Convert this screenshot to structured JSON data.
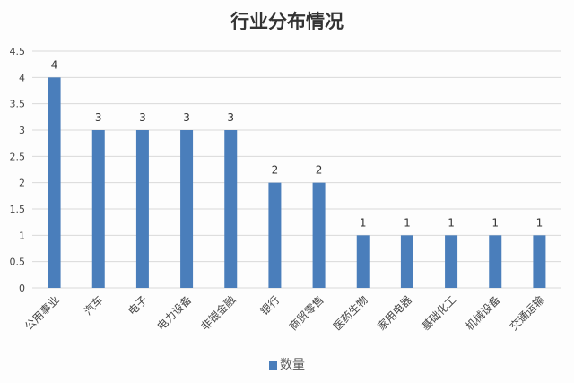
{
  "chart_data": {
    "type": "bar",
    "title": "行业分布情况",
    "categories": [
      "公用事业",
      "汽车",
      "电子",
      "电力设备",
      "非银金融",
      "银行",
      "商贸零售",
      "医药生物",
      "家用电器",
      "基础化工",
      "机械设备",
      "交通运输"
    ],
    "series": [
      {
        "name": "数量",
        "values": [
          4,
          3,
          3,
          3,
          3,
          2,
          2,
          1,
          1,
          1,
          1,
          1
        ]
      }
    ],
    "ylim": [
      0,
      4.5
    ],
    "yticks": [
      "0",
      "0.5",
      "1",
      "1.5",
      "2",
      "2.5",
      "3",
      "3.5",
      "4",
      "4.5"
    ],
    "xlabel": "",
    "ylabel": "",
    "grid": true,
    "legend": "bottom-center",
    "colors": {
      "bar": "#4a7ebb",
      "grid": "#d9d9d9"
    }
  }
}
